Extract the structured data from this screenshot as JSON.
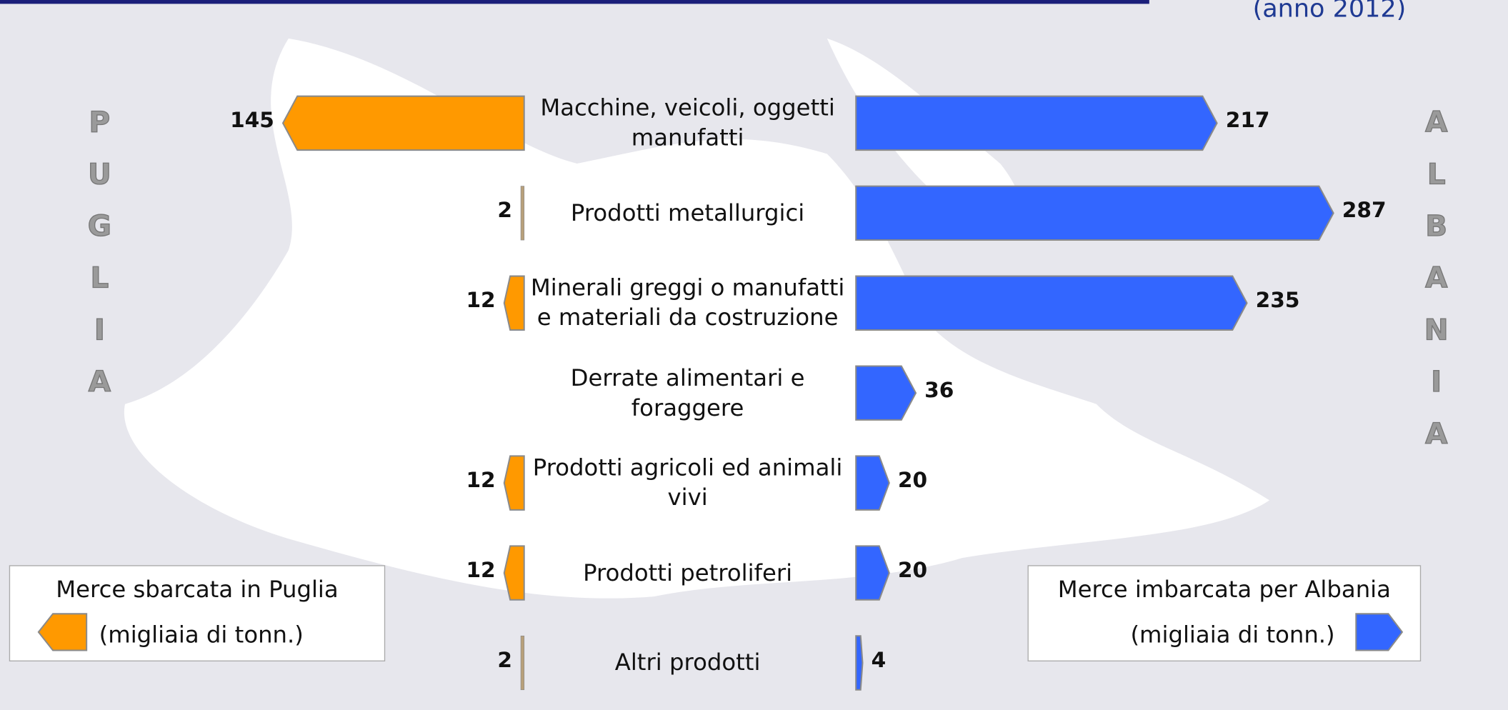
{
  "chart_data": {
    "type": "bar",
    "orientation": "diverging-horizontal",
    "subtitle": "(anno 2012)",
    "unit": "(migliaia di tonn.)",
    "left_label": "PUGLIA",
    "right_label": "ALBANIA",
    "categories": [
      "Macchine, veicoli, oggetti manufatti",
      "Prodotti metallurgici",
      "Minerali greggi o manufatti e materiali da costruzione",
      "Derrate alimentari e foraggere",
      "Prodotti agricoli ed animali vivi",
      "Prodotti petroliferi",
      "Altri prodotti"
    ],
    "series": [
      {
        "name": "Merce sbarcata in Puglia",
        "color": "#ff9900",
        "values": [
          145,
          2,
          12,
          null,
          12,
          12,
          2
        ]
      },
      {
        "name": "Merce imbarcata per Albania",
        "color": "#3366ff",
        "values": [
          217,
          287,
          235,
          36,
          20,
          20,
          4
        ]
      }
    ]
  }
}
